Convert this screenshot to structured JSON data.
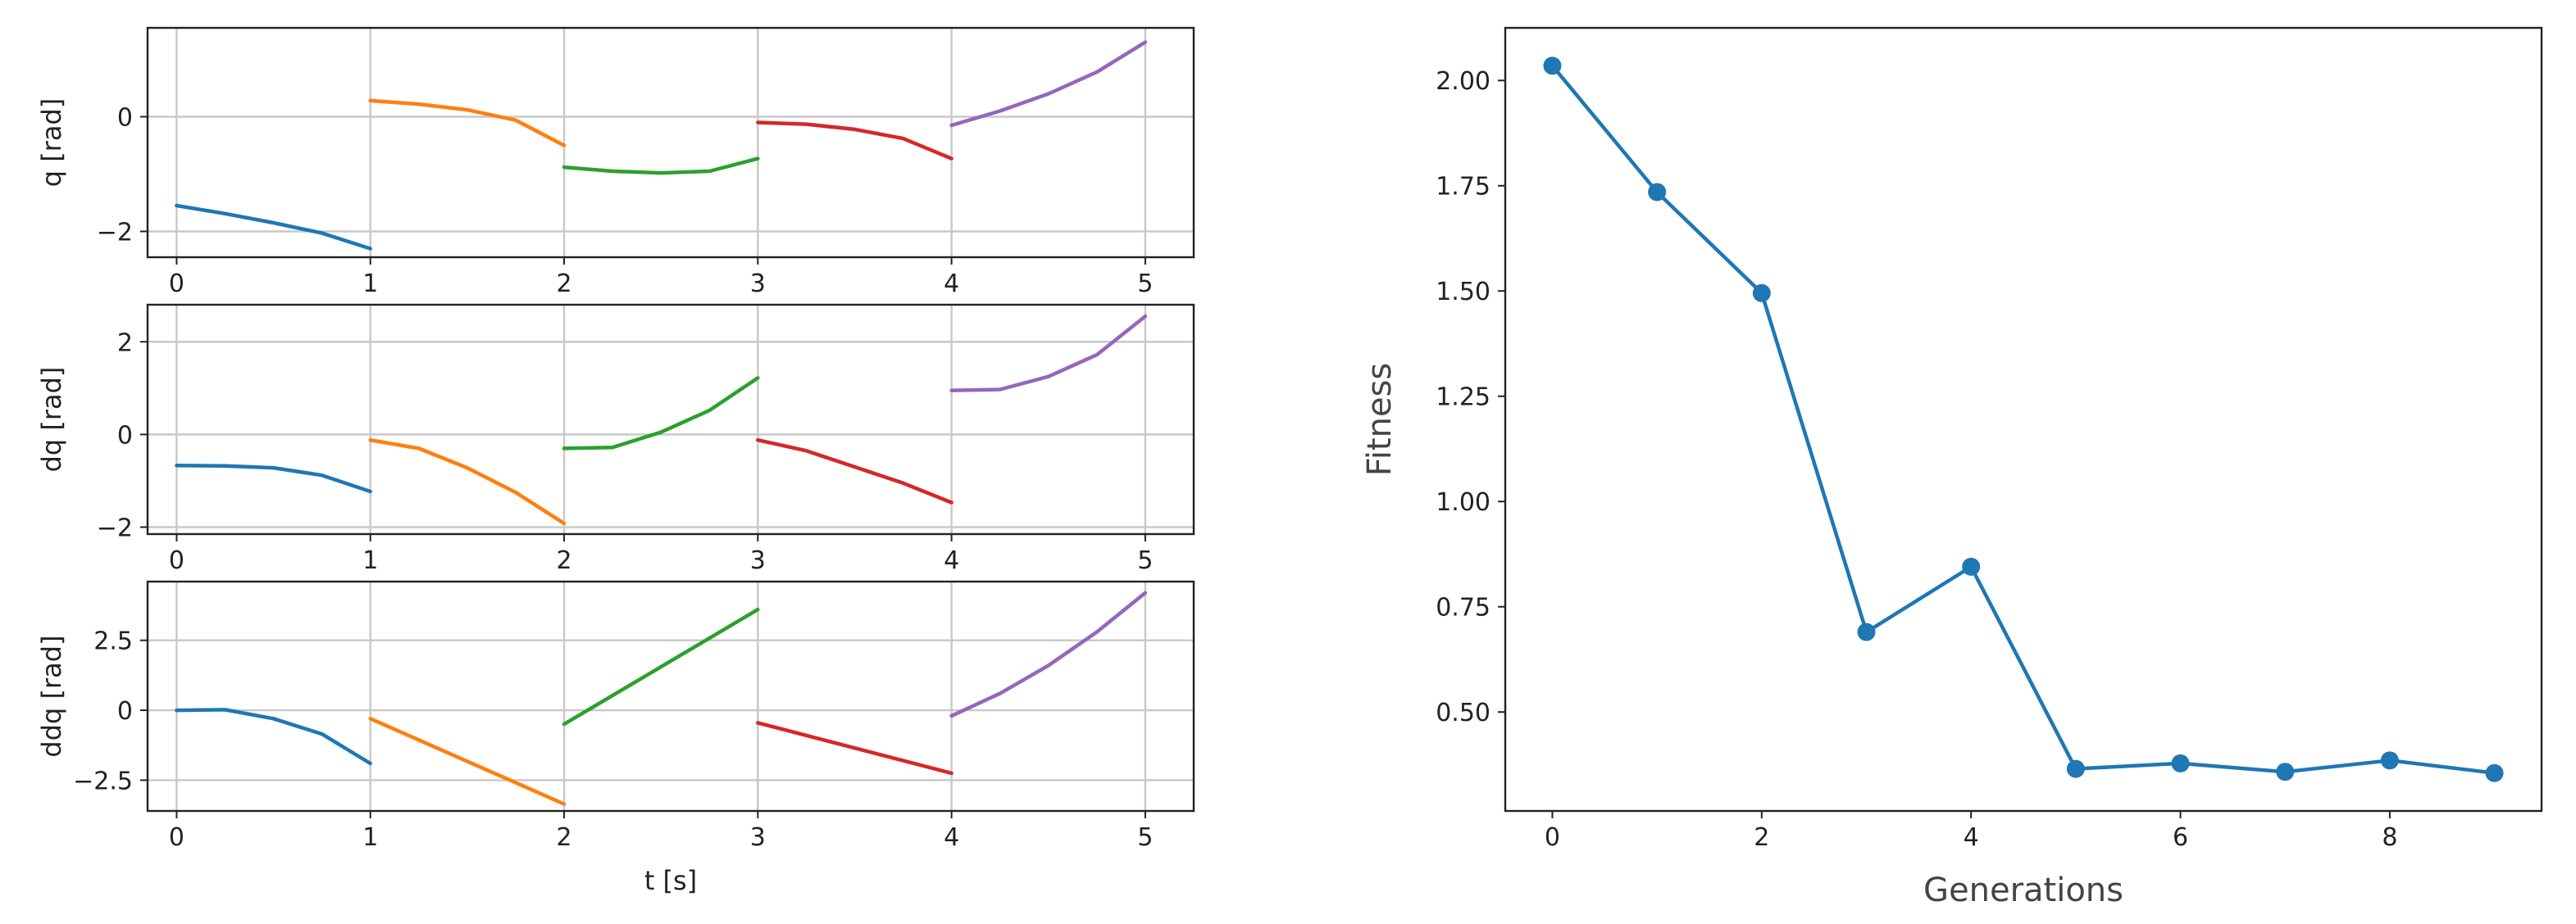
{
  "chart_data": [
    {
      "type": "line",
      "xlabel": "",
      "ylabel": "q [rad]",
      "grid": true,
      "xlim": [
        -0.15,
        5.25
      ],
      "ylim": [
        -2.45,
        1.55
      ],
      "xticks": [
        0,
        1,
        2,
        3,
        4,
        5
      ],
      "yticks": [
        -2,
        0
      ],
      "series": [
        {
          "color": "#1f77b4",
          "x": [
            0,
            0.25,
            0.5,
            0.75,
            1
          ],
          "y": [
            -1.55,
            -1.69,
            -1.85,
            -2.03,
            -2.3
          ]
        },
        {
          "color": "#ff7f0e",
          "x": [
            1,
            1.25,
            1.5,
            1.75,
            2
          ],
          "y": [
            0.28,
            0.22,
            0.12,
            -0.06,
            -0.5
          ]
        },
        {
          "color": "#2ca02c",
          "x": [
            2,
            2.25,
            2.5,
            2.75,
            3
          ],
          "y": [
            -0.88,
            -0.95,
            -0.98,
            -0.95,
            -0.73
          ]
        },
        {
          "color": "#d62728",
          "x": [
            3,
            3.25,
            3.5,
            3.75,
            4
          ],
          "y": [
            -0.1,
            -0.13,
            -0.22,
            -0.38,
            -0.73
          ]
        },
        {
          "color": "#9467bd",
          "x": [
            4,
            4.25,
            4.5,
            4.75,
            5
          ],
          "y": [
            -0.15,
            0.1,
            0.4,
            0.78,
            1.3
          ]
        }
      ]
    },
    {
      "type": "line",
      "xlabel": "",
      "ylabel": "dq [rad]",
      "grid": true,
      "xlim": [
        -0.15,
        5.25
      ],
      "ylim": [
        -2.15,
        2.8
      ],
      "xticks": [
        0,
        1,
        2,
        3,
        4,
        5
      ],
      "yticks": [
        -2,
        0,
        2
      ],
      "series": [
        {
          "color": "#1f77b4",
          "x": [
            0,
            0.25,
            0.5,
            0.75,
            1
          ],
          "y": [
            -0.67,
            -0.68,
            -0.72,
            -0.88,
            -1.23
          ]
        },
        {
          "color": "#ff7f0e",
          "x": [
            1,
            1.25,
            1.5,
            1.75,
            2
          ],
          "y": [
            -0.12,
            -0.3,
            -0.72,
            -1.25,
            -1.92
          ]
        },
        {
          "color": "#2ca02c",
          "x": [
            2,
            2.25,
            2.5,
            2.75,
            3
          ],
          "y": [
            -0.3,
            -0.28,
            0.05,
            0.52,
            1.22
          ]
        },
        {
          "color": "#d62728",
          "x": [
            3,
            3.25,
            3.5,
            3.75,
            4
          ],
          "y": [
            -0.12,
            -0.35,
            -0.7,
            -1.05,
            -1.47
          ]
        },
        {
          "color": "#9467bd",
          "x": [
            4,
            4.25,
            4.5,
            4.75,
            5
          ],
          "y": [
            0.95,
            0.97,
            1.25,
            1.72,
            2.55
          ]
        }
      ]
    },
    {
      "type": "line",
      "xlabel": "t [s]",
      "ylabel": "ddq [rad]",
      "grid": true,
      "xlim": [
        -0.15,
        5.25
      ],
      "ylim": [
        -3.6,
        4.6
      ],
      "xticks": [
        0,
        1,
        2,
        3,
        4,
        5
      ],
      "yticks": [
        -2.5,
        0,
        2.5
      ],
      "series": [
        {
          "color": "#1f77b4",
          "x": [
            0,
            0.25,
            0.5,
            0.75,
            1
          ],
          "y": [
            0.0,
            0.02,
            -0.3,
            -0.85,
            -1.9
          ]
        },
        {
          "color": "#ff7f0e",
          "x": [
            1,
            2
          ],
          "y": [
            -0.3,
            -3.35
          ]
        },
        {
          "color": "#2ca02c",
          "x": [
            2,
            3
          ],
          "y": [
            -0.5,
            3.6
          ]
        },
        {
          "color": "#d62728",
          "x": [
            3,
            4
          ],
          "y": [
            -0.45,
            -2.25
          ]
        },
        {
          "color": "#9467bd",
          "x": [
            4,
            4.25,
            4.5,
            4.75,
            5
          ],
          "y": [
            -0.2,
            0.6,
            1.6,
            2.8,
            4.2
          ]
        }
      ]
    },
    {
      "type": "line",
      "xlabel": "Generations",
      "ylabel": "Fitness",
      "grid": false,
      "xlim": [
        -0.45,
        9.45
      ],
      "ylim": [
        0.265,
        2.125
      ],
      "xticks": [
        0,
        2,
        4,
        6,
        8
      ],
      "yticks": [
        0.5,
        0.75,
        1.0,
        1.25,
        1.5,
        1.75,
        2.0
      ],
      "ytick_labels": [
        "0.50",
        "0.75",
        "1.00",
        "1.25",
        "1.50",
        "1.75",
        "2.00"
      ],
      "marker": "o",
      "series": [
        {
          "color": "#1f77b4",
          "x": [
            0,
            1,
            2,
            3,
            4,
            5,
            6,
            7,
            8,
            9
          ],
          "y": [
            2.035,
            1.735,
            1.495,
            0.69,
            0.845,
            0.365,
            0.378,
            0.358,
            0.385,
            0.355
          ]
        }
      ]
    }
  ]
}
